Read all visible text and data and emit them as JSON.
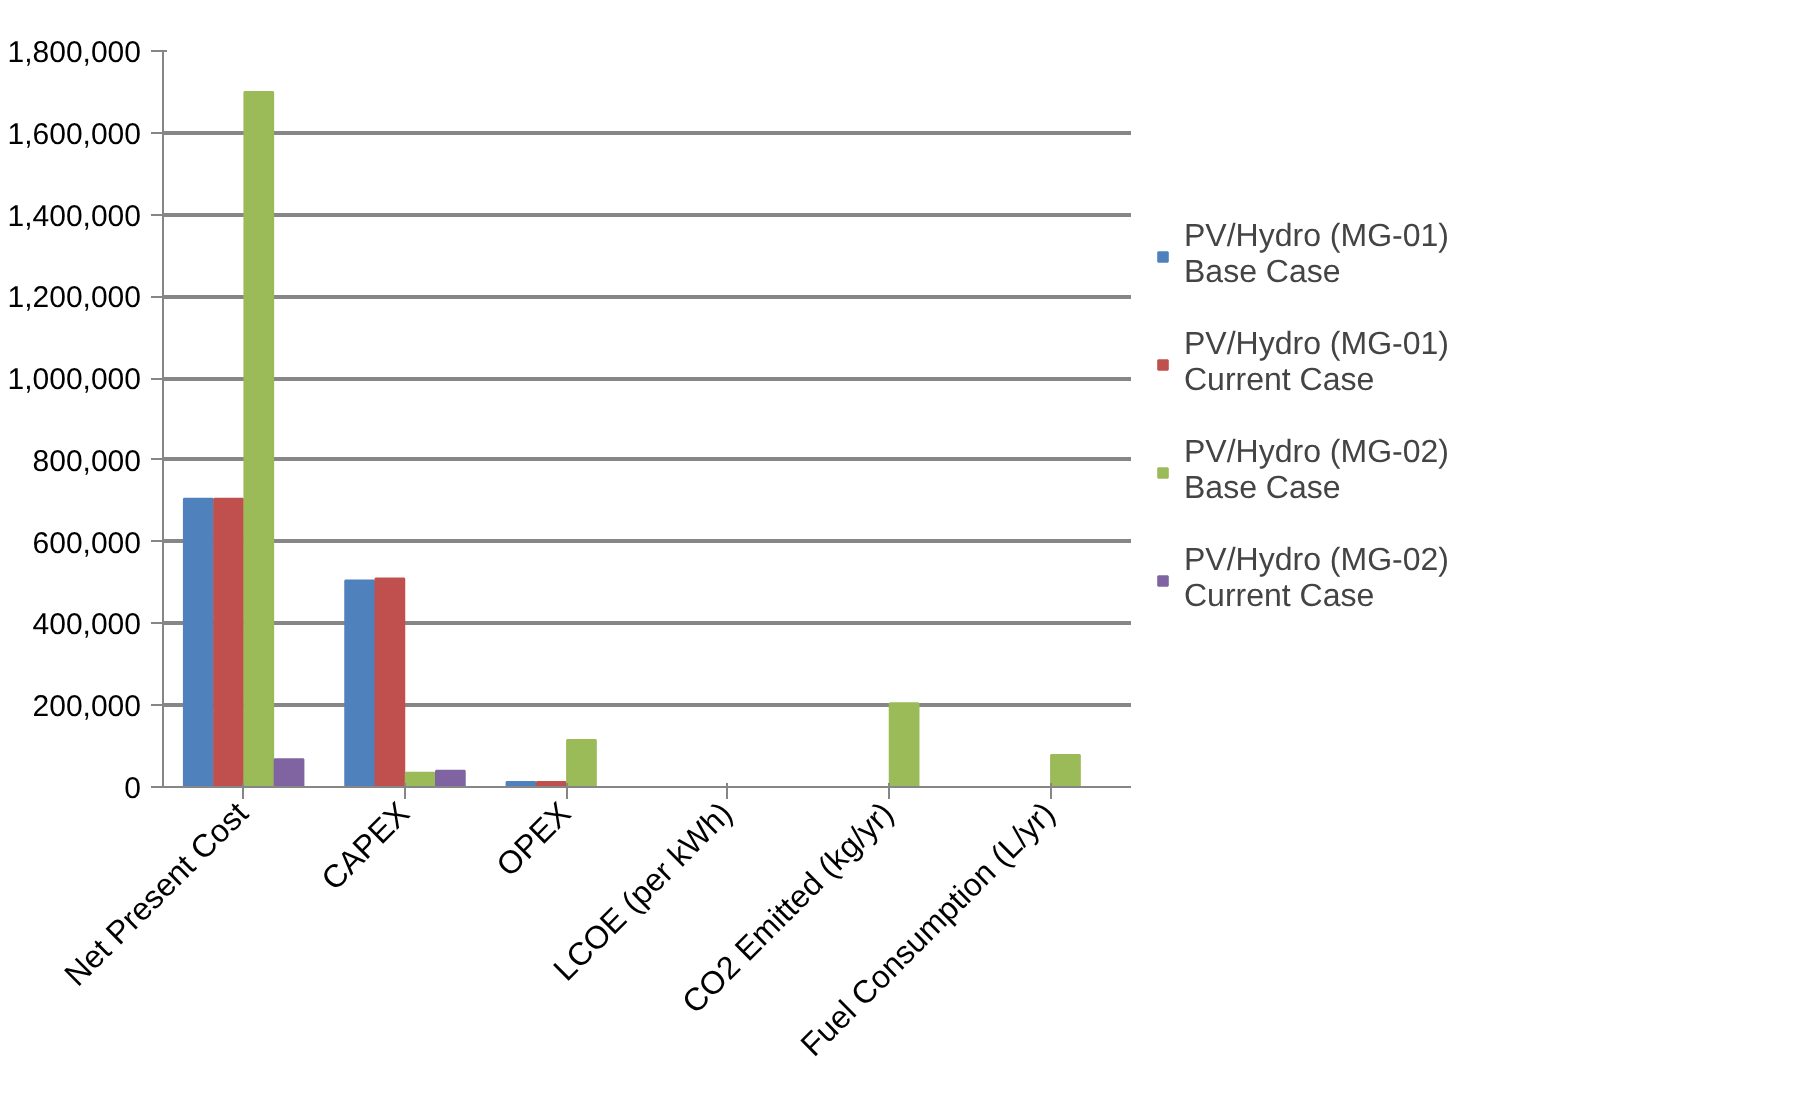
{
  "chart_data": {
    "type": "bar",
    "categories": [
      "Net Present Cost",
      "CAPEX",
      "OPEX",
      "LCOE (per kWh)",
      "CO2 Emitted (kg/yr)",
      "Fuel Consumption (L/yr)"
    ],
    "series": [
      {
        "name": "PV/Hydro (MG-01) Base Case",
        "color": "#4f81bd",
        "values": [
          705000,
          505000,
          12000,
          0,
          0,
          0
        ]
      },
      {
        "name": "PV/Hydro (MG-01) Current Case",
        "color": "#c0504d",
        "values": [
          705000,
          510000,
          12000,
          0,
          0,
          0
        ]
      },
      {
        "name": "PV/Hydro (MG-02) Base Case",
        "color": "#9bbb59",
        "values": [
          1700000,
          35000,
          115000,
          0,
          205000,
          78000
        ]
      },
      {
        "name": "PV/Hydro (MG-02) Current Case",
        "color": "#8064a2",
        "values": [
          68000,
          40000,
          0,
          0,
          0,
          0
        ]
      }
    ],
    "ylim": [
      0,
      1800000
    ],
    "yticks": [
      {
        "value": 0,
        "label": "0"
      },
      {
        "value": 200000,
        "label": "200,000"
      },
      {
        "value": 400000,
        "label": "400,000"
      },
      {
        "value": 600000,
        "label": "600,000"
      },
      {
        "value": 800000,
        "label": "800,000"
      },
      {
        "value": 1000000,
        "label": "1,000,000"
      },
      {
        "value": 1200000,
        "label": "1,200,000"
      },
      {
        "value": 1400000,
        "label": "1,400,000"
      },
      {
        "value": 1600000,
        "label": "1,600,000"
      },
      {
        "value": 1800000,
        "label": "1,800,000"
      }
    ],
    "grid": "y",
    "legend": "right"
  }
}
